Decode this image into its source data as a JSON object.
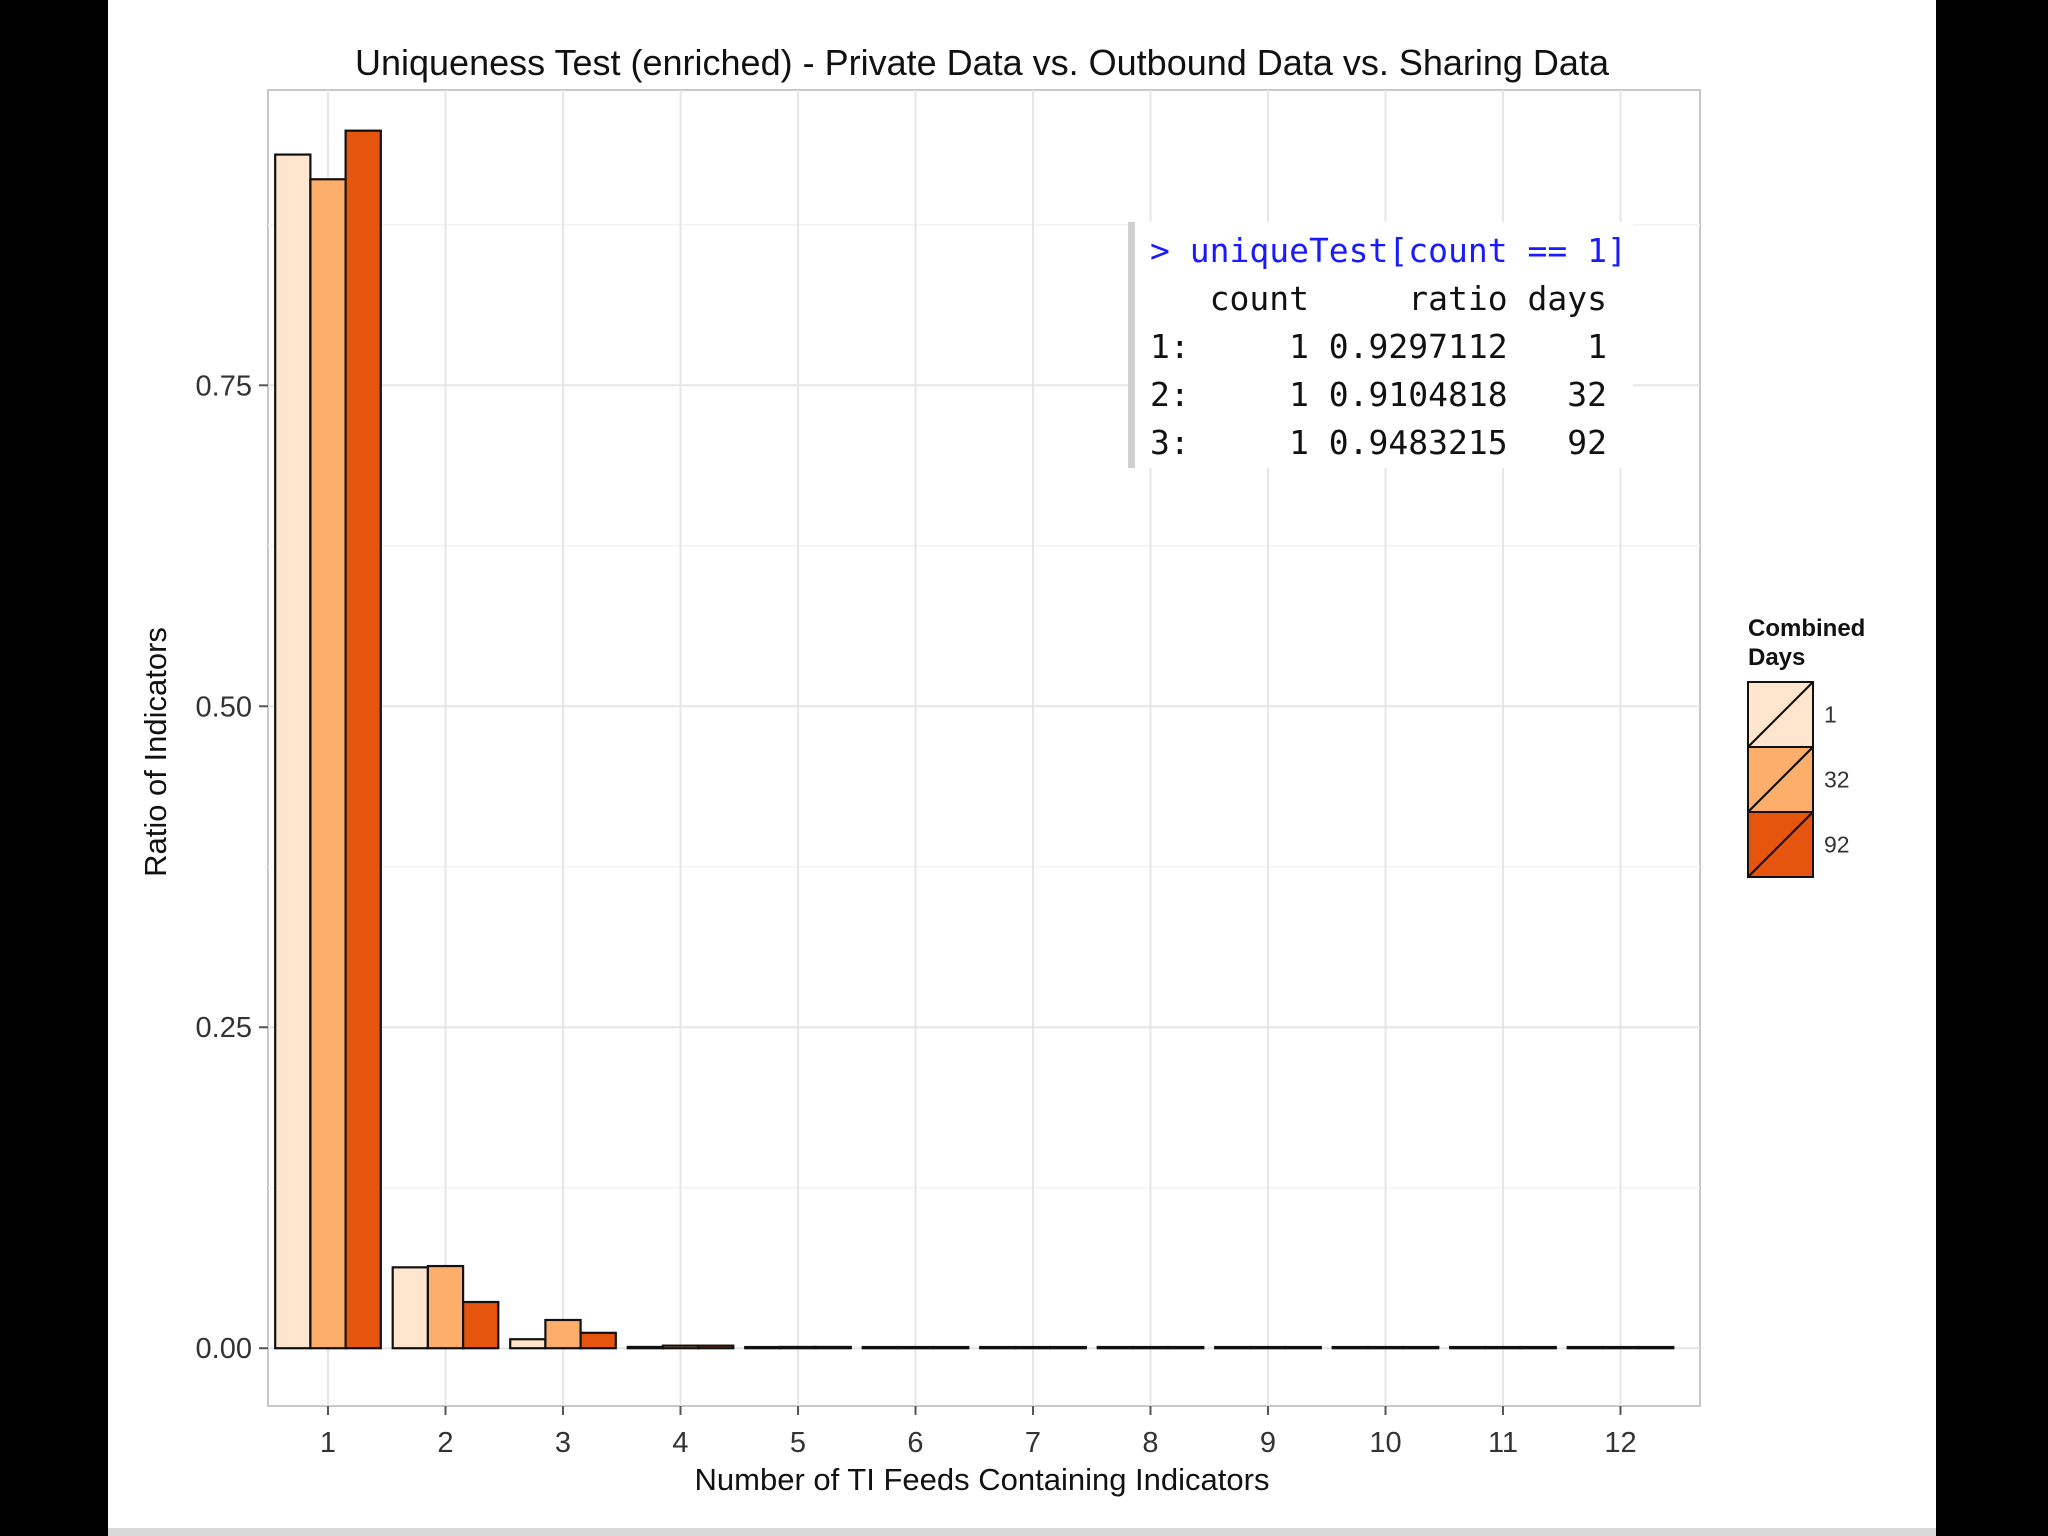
{
  "chart_data": {
    "type": "bar",
    "title": "Uniqueness Test (enriched) - Private Data vs. Outbound Data vs. Sharing Data",
    "xlabel": "Number of TI Feeds Containing Indicators",
    "ylabel": "Ratio of Indicators",
    "categories": [
      "1",
      "2",
      "3",
      "4",
      "5",
      "6",
      "7",
      "8",
      "9",
      "10",
      "11",
      "12"
    ],
    "yticks": [
      "0.00",
      "0.25",
      "0.50",
      "0.75"
    ],
    "ylim": [
      -0.045,
      0.98
    ],
    "grid": true,
    "legend": {
      "title_line1": "Combined",
      "title_line2": "Days",
      "placement": "right"
    },
    "series": [
      {
        "name": "1",
        "color": "#FEE6CE",
        "values": [
          0.9297112,
          0.063,
          0.007,
          0.001,
          0.0005,
          0.0003,
          0.0002,
          0.0001,
          0.0001,
          0.0001,
          0.0001,
          0.0001
        ]
      },
      {
        "name": "32",
        "color": "#FDAE6B",
        "values": [
          0.9104818,
          0.064,
          0.022,
          0.002,
          0.001,
          0.0005,
          0.0003,
          0.0002,
          0.0001,
          0.0001,
          0.0001,
          0.0001
        ]
      },
      {
        "name": "92",
        "color": "#E6550D",
        "values": [
          0.9483215,
          0.036,
          0.012,
          0.002,
          0.001,
          0.0005,
          0.0003,
          0.0002,
          0.0001,
          0.0001,
          0.0001,
          0.0001
        ]
      }
    ]
  },
  "console": {
    "command": "> uniqueTest[count == 1]",
    "lines": [
      "   count     ratio days",
      "1:     1 0.9297112    1",
      "2:     1 0.9104818   32",
      "3:     1 0.9483215   92"
    ]
  }
}
